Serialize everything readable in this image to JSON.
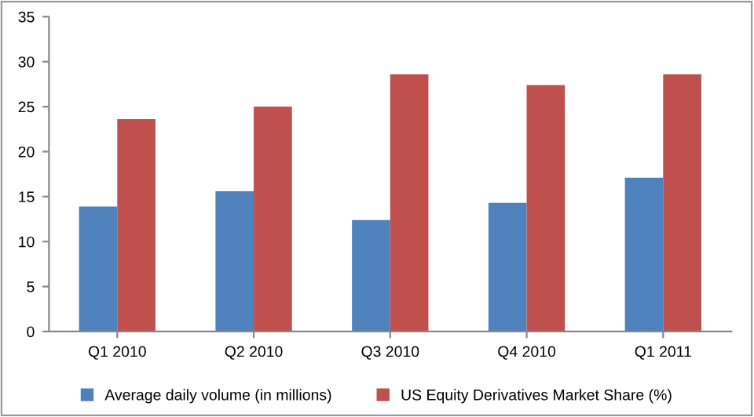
{
  "chart_data": {
    "type": "bar",
    "categories": [
      "Q1 2010",
      "Q2 2010",
      "Q3 2010",
      "Q4 2010",
      "Q1 2011"
    ],
    "series": [
      {
        "name": "Average daily volume (in millions)",
        "color": "#4f81bd",
        "values": [
          13.9,
          15.6,
          12.4,
          14.3,
          17.1
        ]
      },
      {
        "name": "US Equity Derivatives Market Share (%)",
        "color": "#c0504d",
        "values": [
          23.6,
          25.0,
          28.6,
          27.4,
          28.6
        ]
      }
    ],
    "ylim": [
      0,
      35
    ],
    "yticks": [
      0,
      5,
      10,
      15,
      20,
      25,
      30,
      35
    ],
    "grid": false,
    "legend": "bottom"
  }
}
